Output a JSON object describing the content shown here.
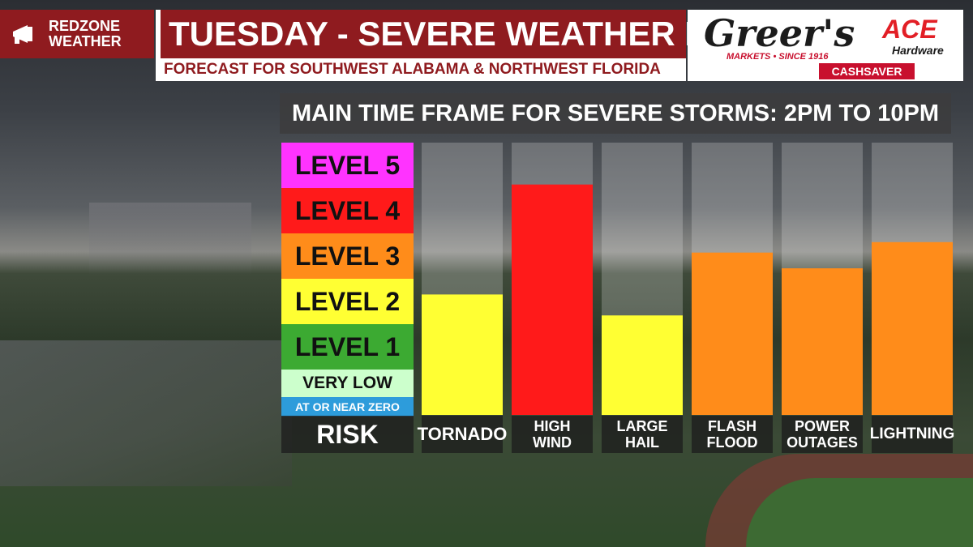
{
  "brand": {
    "line1": "REDZONE",
    "line2": "WEATHER"
  },
  "header": {
    "title": "TUESDAY - SEVERE WEATHER RISK",
    "subtitle": "FORECAST FOR SOUTHWEST ALABAMA & NORTHWEST FLORIDA"
  },
  "sponsors": {
    "greers": "Greer's",
    "greers_tagline": "MARKETS • SINCE 1916",
    "cashsaver": "CASHSAVER",
    "ace": "ACE",
    "ace_sub": "Hardware"
  },
  "timeframe": "MAIN TIME FRAME FOR SEVERE STORMS: 2PM TO 10PM",
  "chart_data": {
    "type": "bar",
    "title": "",
    "categories": [
      "TORNADO",
      "HIGH\nWIND",
      "LARGE\nHAIL",
      "FLASH\nFLOOD",
      "POWER\nOUTAGES",
      "LIGHTNING"
    ],
    "values": [
      2.3,
      4.4,
      1.9,
      3.1,
      2.8,
      3.3
    ],
    "ylim": [
      0,
      5.2
    ],
    "ylabel": "RISK",
    "levels": [
      {
        "label": "LEVEL 5",
        "color": "#ff33ff",
        "size": "big"
      },
      {
        "label": "LEVEL 4",
        "color": "#ff1a1a",
        "size": "big"
      },
      {
        "label": "LEVEL 3",
        "color": "#ff8c1a",
        "size": "big"
      },
      {
        "label": "LEVEL 2",
        "color": "#ffff33",
        "size": "big"
      },
      {
        "label": "LEVEL 1",
        "color": "#3caa32",
        "size": "big"
      },
      {
        "label": "VERY LOW",
        "color": "#ccffcc",
        "size": "mid"
      },
      {
        "label": "AT OR NEAR ZERO",
        "color": "#2d9cdb",
        "size": "small"
      }
    ],
    "bar_colors": [
      "#ffff33",
      "#ff1a1a",
      "#ffff33",
      "#ff8c1a",
      "#ff8c1a",
      "#ff8c1a"
    ],
    "track_color": "#e6e6e6"
  }
}
